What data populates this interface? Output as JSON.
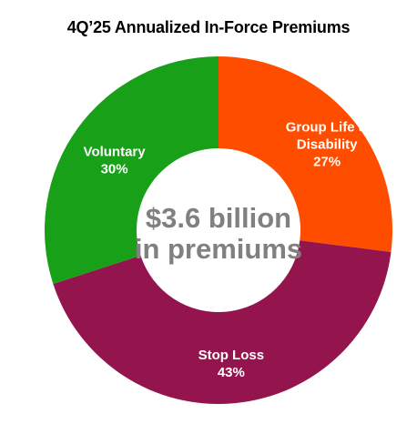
{
  "chart_data": {
    "type": "pie",
    "title": "4Q’25 Annualized In-Force Premiums",
    "center_label": [
      "$3.6 billion",
      "in premiums"
    ],
    "slices": [
      {
        "label": [
          "Group Life &",
          "Disability"
        ],
        "value": 27,
        "value_label": "27%",
        "color": "#ff4d00"
      },
      {
        "label": [
          "Stop Loss"
        ],
        "value": 43,
        "value_label": "43%",
        "color": "#94144d"
      },
      {
        "label": [
          "Voluntary"
        ],
        "value": 30,
        "value_label": "30%",
        "color": "#18a018"
      }
    ]
  }
}
